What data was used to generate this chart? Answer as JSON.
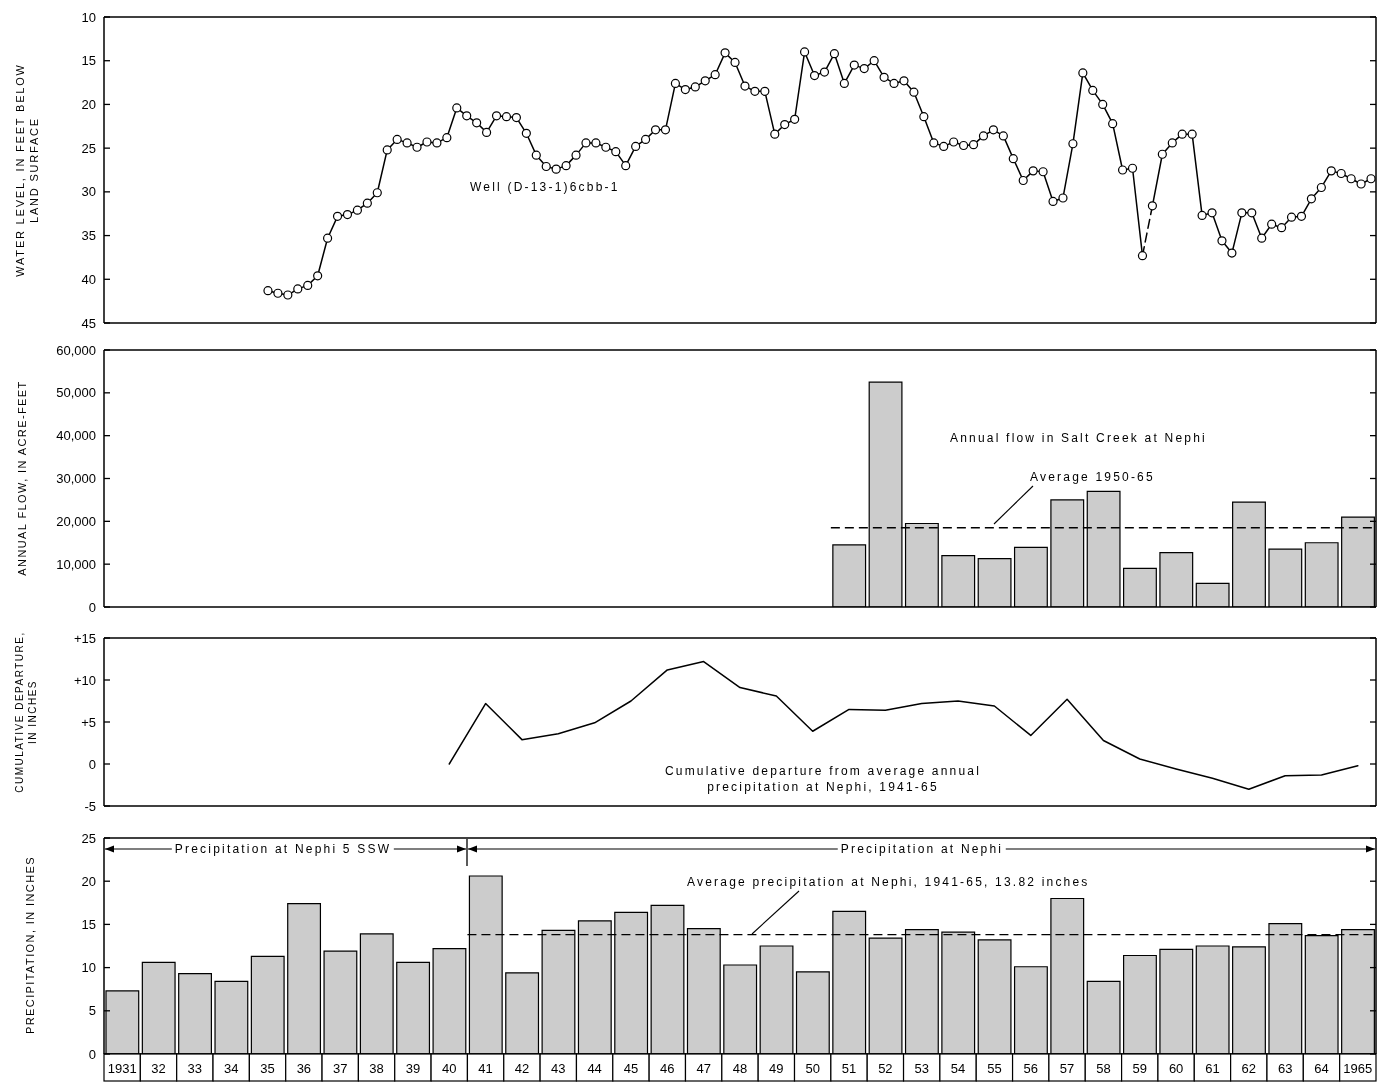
{
  "chart_data": [
    {
      "type": "line",
      "ylabel": "WATER LEVEL, IN FEET BELOW LAND SURFACE",
      "annotations": [
        "Well (D-13-1)6cbb-1"
      ],
      "categories": [
        null,
        null,
        null,
        null,
        null,
        null,
        null,
        null,
        null,
        null,
        null,
        null,
        null,
        null,
        null,
        null,
        null,
        null,
        null,
        null,
        null,
        null,
        null,
        null,
        null,
        null,
        null,
        null,
        null,
        null,
        null,
        null,
        null,
        null,
        null,
        null,
        null,
        null,
        null,
        null,
        null,
        null,
        null,
        null,
        null,
        null,
        null,
        null,
        null,
        null,
        null,
        null,
        null,
        null,
        null,
        null,
        null,
        null,
        null,
        null,
        null,
        null,
        null,
        null,
        null,
        null,
        null,
        null,
        null,
        null,
        null,
        null,
        null,
        null,
        null,
        null,
        null,
        null,
        null,
        null,
        null,
        null,
        null,
        null,
        null,
        null,
        null,
        null,
        null,
        null,
        null,
        null,
        null,
        null,
        null,
        null,
        null,
        null,
        null,
        null,
        null,
        null,
        null,
        null,
        null,
        null,
        null,
        null,
        null,
        null,
        null,
        null,
        null,
        null,
        null,
        null,
        null,
        null,
        null,
        null,
        null,
        null,
        null,
        null,
        null,
        null,
        null,
        null
      ],
      "ylim": [
        45,
        10
      ],
      "yticks": [
        10,
        15,
        20,
        25,
        30,
        35,
        40,
        45
      ],
      "tick_labels": "y",
      "series": [
        {
          "color": "#000000",
          "marker": "circle",
          "values": [
            null,
            null,
            null,
            null,
            null,
            null,
            null,
            null,
            null,
            null,
            null,
            null,
            null,
            null,
            null,
            null,
            41.3,
            41.6,
            41.8,
            41.1,
            40.7,
            39.6,
            35.3,
            32.8,
            32.6,
            32.1,
            31.3,
            30.1,
            25.2,
            24.0,
            24.4,
            24.9,
            24.3,
            24.4,
            23.8,
            20.4,
            21.3,
            22.1,
            23.2,
            21.3,
            21.4,
            21.5,
            23.3,
            25.8,
            27.1,
            27.4,
            27.0,
            25.8,
            24.4,
            24.4,
            24.9,
            25.4,
            27.0,
            24.8,
            24.0,
            22.9,
            22.9,
            17.6,
            18.3,
            18.0,
            17.3,
            16.6,
            14.1,
            15.2,
            17.9,
            18.5,
            18.5,
            23.4,
            22.3,
            21.7,
            14.0,
            16.7,
            16.3,
            14.2,
            17.6,
            15.5,
            15.9,
            15.0,
            16.9,
            17.6,
            17.3,
            18.6,
            21.4,
            24.4,
            24.8,
            24.3,
            24.7,
            24.6,
            23.6,
            22.9,
            23.6,
            26.2,
            28.7,
            27.6,
            27.7,
            31.1,
            30.7,
            24.5,
            16.4,
            18.4,
            20.0,
            22.2,
            27.5,
            27.3,
            37.3,
            null,
            null,
            null,
            null,
            null,
            null,
            null,
            null,
            null,
            null,
            null,
            null,
            null,
            null,
            null,
            null,
            null,
            null,
            null,
            null,
            null,
            null,
            null
          ]
        },
        {
          "color": "#000000",
          "line_style": "dashed",
          "values": [
            null,
            null,
            null,
            null,
            null,
            null,
            null,
            null,
            null,
            null,
            null,
            null,
            null,
            null,
            null,
            null,
            null,
            null,
            null,
            null,
            null,
            null,
            null,
            null,
            null,
            null,
            null,
            null,
            null,
            null,
            null,
            null,
            null,
            null,
            null,
            null,
            null,
            null,
            null,
            null,
            null,
            null,
            null,
            null,
            null,
            null,
            null,
            null,
            null,
            null,
            null,
            null,
            null,
            null,
            null,
            null,
            null,
            null,
            null,
            null,
            null,
            null,
            null,
            null,
            null,
            null,
            null,
            null,
            null,
            null,
            null,
            null,
            null,
            null,
            null,
            null,
            null,
            null,
            null,
            null,
            null,
            null,
            null,
            null,
            null,
            null,
            null,
            null,
            null,
            null,
            null,
            null,
            null,
            null,
            null,
            null,
            null,
            null,
            null,
            null,
            null,
            null,
            null,
            null,
            37.3,
            31.6,
            null,
            null,
            null,
            null,
            null,
            null,
            null,
            null,
            null,
            null,
            null,
            null,
            null,
            null,
            null,
            null,
            null,
            null,
            null,
            null,
            null,
            null
          ]
        },
        {
          "color": "#000000",
          "marker": "circle",
          "values": [
            null,
            null,
            null,
            null,
            null,
            null,
            null,
            null,
            null,
            null,
            null,
            null,
            null,
            null,
            null,
            null,
            null,
            null,
            null,
            null,
            null,
            null,
            null,
            null,
            null,
            null,
            null,
            null,
            null,
            null,
            null,
            null,
            null,
            null,
            null,
            null,
            null,
            null,
            null,
            null,
            null,
            null,
            null,
            null,
            null,
            null,
            null,
            null,
            null,
            null,
            null,
            null,
            null,
            null,
            null,
            null,
            null,
            null,
            null,
            null,
            null,
            null,
            null,
            null,
            null,
            null,
            null,
            null,
            null,
            null,
            null,
            null,
            null,
            null,
            null,
            null,
            null,
            null,
            null,
            null,
            null,
            null,
            null,
            null,
            null,
            null,
            null,
            null,
            null,
            null,
            null,
            null,
            null,
            null,
            null,
            null,
            null,
            null,
            null,
            null,
            null,
            null,
            null,
            null,
            null,
            31.6,
            25.7,
            24.4,
            23.4,
            23.4,
            32.7,
            32.4,
            35.6,
            37.0,
            32.4,
            32.4,
            35.3,
            33.7,
            34.1,
            32.9,
            32.8,
            30.8,
            29.5,
            27.6,
            27.9,
            28.5,
            29.1,
            28.5
          ]
        }
      ]
    },
    {
      "type": "bar",
      "ylabel": "ANNUAL FLOW, IN ACRE-FEET",
      "annotations": [
        "Annual flow in Salt Creek at Nephi"
      ],
      "categories": [
        "1931",
        "32",
        "33",
        "34",
        "35",
        "36",
        "37",
        "38",
        "39",
        "40",
        "41",
        "42",
        "43",
        "44",
        "45",
        "46",
        "47",
        "48",
        "49",
        "50",
        "51",
        "52",
        "53",
        "54",
        "55",
        "56",
        "57",
        "58",
        "59",
        "60",
        "61",
        "62",
        "63",
        "64",
        "1965"
      ],
      "values": [
        null,
        null,
        null,
        null,
        null,
        null,
        null,
        null,
        null,
        null,
        null,
        null,
        null,
        null,
        null,
        null,
        null,
        null,
        null,
        null,
        14500,
        52500,
        19500,
        12000,
        11300,
        13900,
        25000,
        27000,
        9000,
        12700,
        5500,
        24500,
        13500,
        15000,
        21000
      ],
      "color": "#cccccc",
      "ylim": [
        0,
        60000
      ],
      "yticks": [
        0,
        {
          "value": 10000,
          "label": "10,000"
        },
        {
          "value": 20000,
          "label": "20,000"
        },
        {
          "value": 30000,
          "label": "30,000"
        },
        {
          "value": 40000,
          "label": "40,000"
        },
        {
          "value": 50000,
          "label": "50,000"
        },
        {
          "value": 60000,
          "label": "60,000"
        }
      ],
      "tick_labels": "y",
      "ref_lines": [
        {
          "axis": "y",
          "value": 18500,
          "label": "Average 1950-65",
          "line_style": "dashed",
          "color": "#000000"
        }
      ]
    },
    {
      "type": "line",
      "ylabel": "CUMULATIVE DEPARTURE, IN INCHES",
      "annotations": [
        "Cumulative departure from average annual precipitation at Nephi, 1941-65"
      ],
      "categories": [
        "1931",
        "32",
        "33",
        "34",
        "35",
        "36",
        "37",
        "38",
        "39",
        "40",
        "41",
        "42",
        "43",
        "44",
        "45",
        "46",
        "47",
        "48",
        "49",
        "50",
        "51",
        "52",
        "53",
        "54",
        "55",
        "56",
        "57",
        "58",
        "59",
        "60",
        "61",
        "62",
        "63",
        "64",
        "1965"
      ],
      "values": [
        null,
        null,
        null,
        null,
        null,
        null,
        null,
        null,
        null,
        0,
        7.2,
        2.9,
        3.6,
        4.9,
        7.5,
        11.2,
        12.2,
        9.1,
        8.1,
        3.9,
        6.5,
        6.4,
        7.2,
        7.5,
        6.9,
        3.4,
        7.7,
        2.8,
        0.6,
        -0.6,
        -1.7,
        -3.0,
        -1.4,
        -1.3,
        -0.2
      ],
      "color": "#000000",
      "ylim": [
        -5,
        15
      ],
      "yticks": [
        -5,
        0,
        {
          "value": 5,
          "label": "+5"
        },
        {
          "value": 10,
          "label": "+10"
        },
        {
          "value": 15,
          "label": "+15"
        }
      ],
      "tick_labels": "y"
    },
    {
      "type": "bar",
      "ylabel": "PRECIPITATION, IN INCHES",
      "annotations": [
        "Precipitation at Nephi 5 SSW",
        "Precipitation at Nephi"
      ],
      "categories": [
        "1931",
        "32",
        "33",
        "34",
        "35",
        "36",
        "37",
        "38",
        "39",
        "40",
        "41",
        "42",
        "43",
        "44",
        "45",
        "46",
        "47",
        "48",
        "49",
        "50",
        "51",
        "52",
        "53",
        "54",
        "55",
        "56",
        "57",
        "58",
        "59",
        "60",
        "61",
        "62",
        "63",
        "64",
        "1965"
      ],
      "values": [
        7.3,
        10.6,
        9.3,
        8.4,
        11.3,
        17.4,
        11.9,
        13.9,
        10.6,
        12.2,
        20.6,
        9.4,
        14.3,
        15.4,
        16.4,
        17.2,
        14.5,
        10.3,
        12.5,
        9.5,
        16.5,
        13.4,
        14.4,
        14.1,
        13.2,
        10.1,
        18.0,
        8.4,
        11.4,
        12.1,
        12.5,
        12.4,
        15.1,
        13.7,
        14.4
      ],
      "color": "#cccccc",
      "ylim": [
        0,
        25
      ],
      "yticks": [
        0,
        5,
        10,
        15,
        20,
        25
      ],
      "ref_lines": [
        {
          "axis": "y",
          "value": 13.82,
          "label": "Average precipitation at Nephi, 1941-65, 13.82 inches",
          "line_style": "dashed",
          "color": "#000000"
        }
      ]
    }
  ]
}
